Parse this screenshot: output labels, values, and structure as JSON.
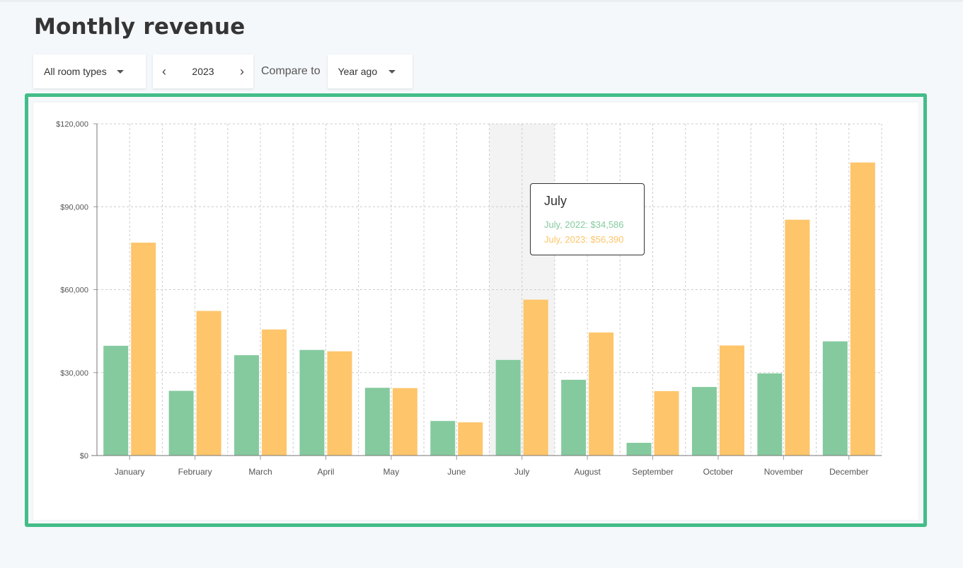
{
  "page": {
    "title": "Monthly revenue"
  },
  "filters": {
    "room_type": "All room types",
    "year": "2023",
    "compare_label": "Compare to",
    "compare_value": "Year ago"
  },
  "colors": {
    "series_2022": "#85ca9e",
    "series_2023": "#fec56a",
    "highlight": "#f3f3f3",
    "frame": "#44bd88"
  },
  "tooltip": {
    "title": "July",
    "line_2022": "July, 2022: $34,586",
    "line_2023": "July, 2023: $56,390"
  },
  "chart_data": {
    "type": "bar",
    "categories": [
      "January",
      "February",
      "March",
      "April",
      "May",
      "June",
      "July",
      "August",
      "September",
      "October",
      "November",
      "December"
    ],
    "series": [
      {
        "values": [
          39700,
          23400,
          36300,
          38200,
          24500,
          12500,
          34586,
          27400,
          4600,
          24800,
          29700,
          41300
        ]
      },
      {
        "values": [
          77000,
          52300,
          45600,
          37700,
          24400,
          12000,
          56390,
          44500,
          23300,
          39800,
          85300,
          106000
        ]
      }
    ],
    "ylim": [
      0,
      120000
    ],
    "y_ticks": [
      "$0",
      "$30,000",
      "$60,000",
      "$90,000",
      "$120,000"
    ],
    "y_tick_values": [
      0,
      30000,
      60000,
      90000,
      120000
    ],
    "highlighted_category": "July",
    "grid": true,
    "legend": "none"
  }
}
